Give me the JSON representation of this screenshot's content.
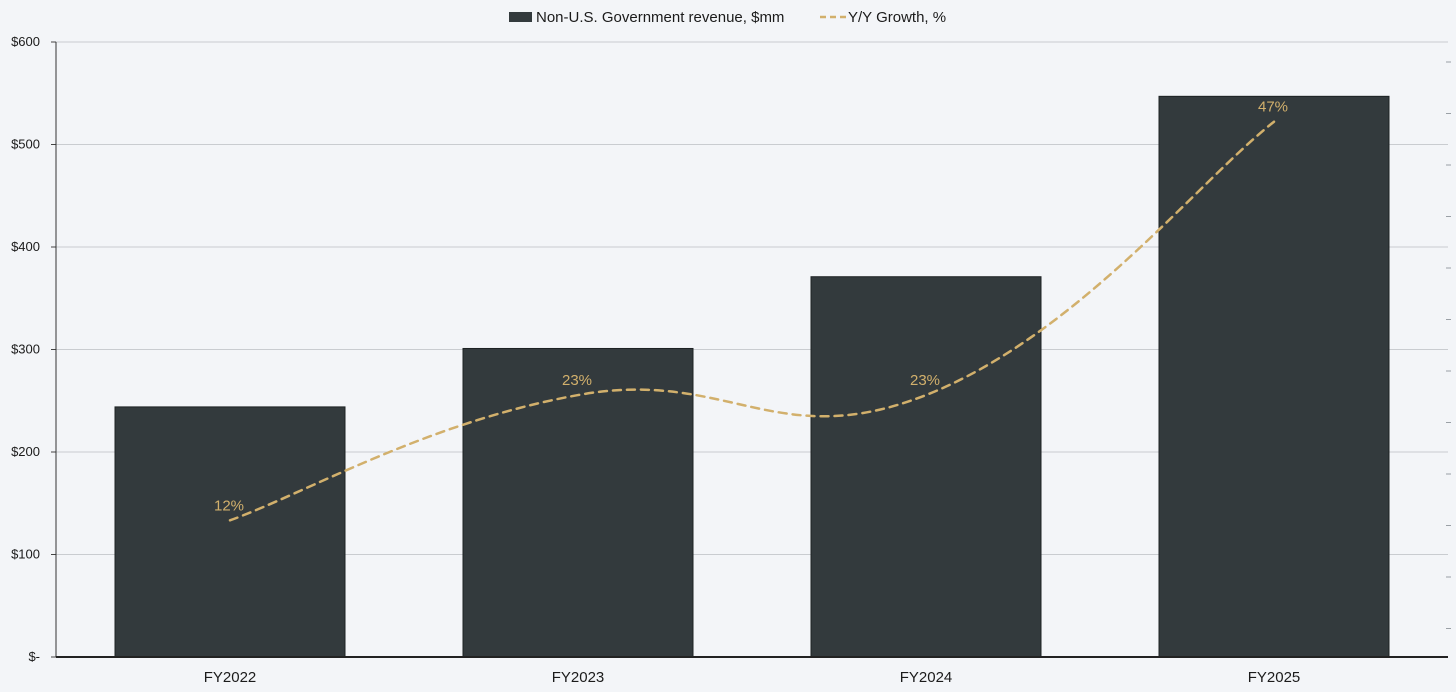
{
  "chart_data": {
    "type": "bar",
    "categories": [
      "FY2022",
      "FY2023",
      "FY2024",
      "FY2025"
    ],
    "series": [
      {
        "name": "Non-U.S. Government revenue, $mm",
        "kind": "bar",
        "axis": "left",
        "color": "#333a3d",
        "values": [
          244,
          301,
          371,
          547
        ]
      },
      {
        "name": "Y/Y Growth, %",
        "kind": "line",
        "style": "dashed",
        "smooth": true,
        "axis": "right",
        "color": "#d2b06c",
        "values": [
          12,
          23,
          23,
          47
        ],
        "data_labels": [
          "12%",
          "23%",
          "23%",
          "47%"
        ]
      }
    ],
    "y_left": {
      "ticks": [
        0,
        100,
        200,
        300,
        400,
        500,
        600
      ],
      "tick_labels": [
        "$-",
        "$100",
        "$200",
        "$300",
        "$400",
        "$500",
        "$600"
      ],
      "ylim": [
        0,
        600
      ]
    },
    "grid": true,
    "legend_position": "top-center"
  }
}
